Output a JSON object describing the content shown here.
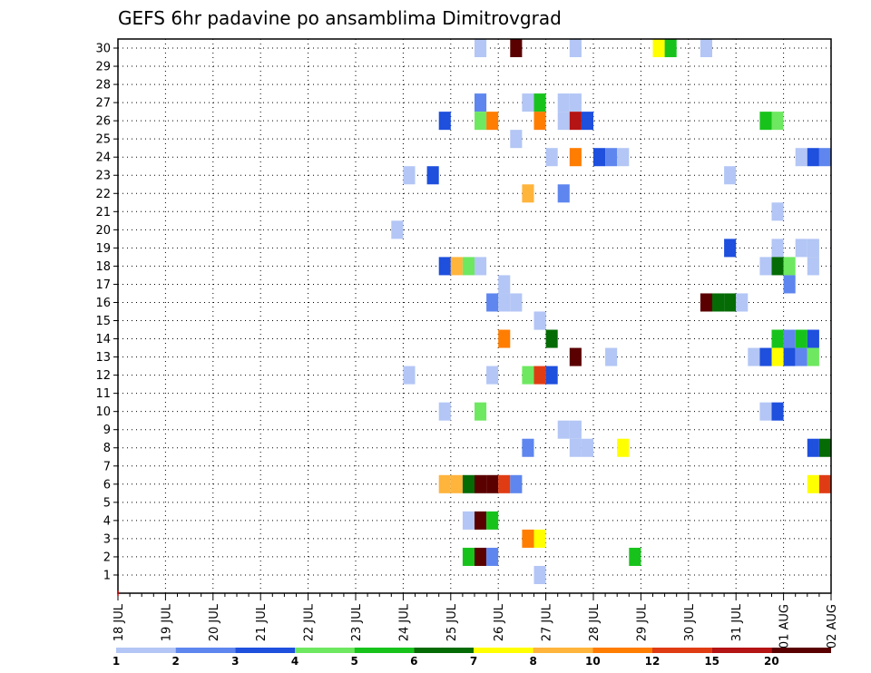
{
  "chart_data": {
    "type": "heatmap",
    "title": "GEFS 6hr padavine po ansamblima Dimitrovgrad",
    "xlabel": "",
    "ylabel": "",
    "x_tick_labels": [
      "18 JUL",
      "19 JUL",
      "20 JUL",
      "21 JUL",
      "22 JUL",
      "23 JUL",
      "24 JUL",
      "25 JUL",
      "26 JUL",
      "27 JUL",
      "28 JUL",
      "29 JUL",
      "30 JUL",
      "31 JUL",
      "01 AUG",
      "02 AUG"
    ],
    "y_tick_labels": [
      "1",
      "2",
      "3",
      "4",
      "5",
      "6",
      "7",
      "8",
      "9",
      "10",
      "11",
      "12",
      "13",
      "14",
      "15",
      "16",
      "17",
      "18",
      "19",
      "20",
      "21",
      "22",
      "23",
      "24",
      "25",
      "26",
      "27",
      "28",
      "29",
      "30"
    ],
    "xlim": [
      0,
      60
    ],
    "ylim": [
      0,
      30.5
    ],
    "x_unit": "6-hour steps since 18 JUL 00Z",
    "grid": true,
    "legend": {
      "placement": "bottom",
      "labels": [
        "1",
        "2",
        "3",
        "4",
        "5",
        "6",
        "7",
        "8",
        "10",
        "12",
        "15",
        "20"
      ],
      "colors": [
        "#b3c6f5",
        "#5e86ee",
        "#1e4fdd",
        "#6ee860",
        "#17c31b",
        "#056b05",
        "#ffff00",
        "#ffb43c",
        "#ff7d00",
        "#e03c14",
        "#b41414",
        "#5a0000"
      ]
    },
    "cells": [
      {
        "member": 30,
        "step": 31,
        "value": 1
      },
      {
        "member": 30,
        "step": 34,
        "value": 20
      },
      {
        "member": 30,
        "step": 39,
        "value": 1
      },
      {
        "member": 30,
        "step": 46,
        "value": 7
      },
      {
        "member": 30,
        "step": 47,
        "value": 5
      },
      {
        "member": 30,
        "step": 50,
        "value": 1
      },
      {
        "member": 27,
        "step": 31,
        "value": 2
      },
      {
        "member": 27,
        "step": 35,
        "value": 1
      },
      {
        "member": 27,
        "step": 36,
        "value": 5
      },
      {
        "member": 27,
        "step": 38,
        "value": 1
      },
      {
        "member": 27,
        "step": 39,
        "value": 1
      },
      {
        "member": 26,
        "step": 28,
        "value": 3
      },
      {
        "member": 26,
        "step": 31,
        "value": 4
      },
      {
        "member": 26,
        "step": 32,
        "value": 10
      },
      {
        "member": 26,
        "step": 36,
        "value": 10
      },
      {
        "member": 26,
        "step": 38,
        "value": 1
      },
      {
        "member": 26,
        "step": 39,
        "value": 15
      },
      {
        "member": 26,
        "step": 40,
        "value": 3
      },
      {
        "member": 26,
        "step": 55,
        "value": 5
      },
      {
        "member": 26,
        "step": 56,
        "value": 4
      },
      {
        "member": 25,
        "step": 34,
        "value": 1
      },
      {
        "member": 24,
        "step": 37,
        "value": 1
      },
      {
        "member": 24,
        "step": 39,
        "value": 10
      },
      {
        "member": 24,
        "step": 41,
        "value": 3
      },
      {
        "member": 24,
        "step": 42,
        "value": 2
      },
      {
        "member": 24,
        "step": 43,
        "value": 1
      },
      {
        "member": 24,
        "step": 58,
        "value": 1
      },
      {
        "member": 24,
        "step": 59,
        "value": 3
      },
      {
        "member": 24,
        "step": 60,
        "value": 2
      },
      {
        "member": 23,
        "step": 25,
        "value": 1
      },
      {
        "member": 23,
        "step": 27,
        "value": 3
      },
      {
        "member": 23,
        "step": 52,
        "value": 1
      },
      {
        "member": 22,
        "step": 35,
        "value": 8
      },
      {
        "member": 22,
        "step": 38,
        "value": 2
      },
      {
        "member": 21,
        "step": 56,
        "value": 1
      },
      {
        "member": 20,
        "step": 24,
        "value": 1
      },
      {
        "member": 19,
        "step": 52,
        "value": 3
      },
      {
        "member": 19,
        "step": 56,
        "value": 1
      },
      {
        "member": 19,
        "step": 58,
        "value": 1
      },
      {
        "member": 19,
        "step": 59,
        "value": 1
      },
      {
        "member": 18,
        "step": 28,
        "value": 3
      },
      {
        "member": 18,
        "step": 29,
        "value": 8
      },
      {
        "member": 18,
        "step": 30,
        "value": 4
      },
      {
        "member": 18,
        "step": 31,
        "value": 1
      },
      {
        "member": 18,
        "step": 55,
        "value": 1
      },
      {
        "member": 18,
        "step": 56,
        "value": 6
      },
      {
        "member": 18,
        "step": 57,
        "value": 4
      },
      {
        "member": 18,
        "step": 59,
        "value": 1
      },
      {
        "member": 17,
        "step": 33,
        "value": 1
      },
      {
        "member": 17,
        "step": 57,
        "value": 2
      },
      {
        "member": 16,
        "step": 32,
        "value": 2
      },
      {
        "member": 16,
        "step": 33,
        "value": 1
      },
      {
        "member": 16,
        "step": 34,
        "value": 1
      },
      {
        "member": 16,
        "step": 50,
        "value": 20
      },
      {
        "member": 16,
        "step": 51,
        "value": 6
      },
      {
        "member": 16,
        "step": 52,
        "value": 6
      },
      {
        "member": 16,
        "step": 53,
        "value": 1
      },
      {
        "member": 15,
        "step": 36,
        "value": 3
      },
      {
        "member": 15,
        "step": 36,
        "value": 1
      },
      {
        "member": 14,
        "step": 33,
        "value": 10
      },
      {
        "member": 14,
        "step": 37,
        "value": 6
      },
      {
        "member": 14,
        "step": 56,
        "value": 5
      },
      {
        "member": 14,
        "step": 57,
        "value": 2
      },
      {
        "member": 14,
        "step": 58,
        "value": 5
      },
      {
        "member": 14,
        "step": 59,
        "value": 3
      },
      {
        "member": 13,
        "step": 39,
        "value": 20
      },
      {
        "member": 13,
        "step": 42,
        "value": 1
      },
      {
        "member": 13,
        "step": 54,
        "value": 1
      },
      {
        "member": 13,
        "step": 55,
        "value": 3
      },
      {
        "member": 13,
        "step": 56,
        "value": 7
      },
      {
        "member": 13,
        "step": 57,
        "value": 3
      },
      {
        "member": 13,
        "step": 58,
        "value": 2
      },
      {
        "member": 13,
        "step": 59,
        "value": 4
      },
      {
        "member": 12,
        "step": 25,
        "value": 1
      },
      {
        "member": 12,
        "step": 32,
        "value": 1
      },
      {
        "member": 12,
        "step": 35,
        "value": 4
      },
      {
        "member": 12,
        "step": 36,
        "value": 12
      },
      {
        "member": 12,
        "step": 37,
        "value": 3
      },
      {
        "member": 10,
        "step": 28,
        "value": 1
      },
      {
        "member": 10,
        "step": 31,
        "value": 4
      },
      {
        "member": 10,
        "step": 55,
        "value": 1
      },
      {
        "member": 10,
        "step": 56,
        "value": 3
      },
      {
        "member": 9,
        "step": 38,
        "value": 1
      },
      {
        "member": 9,
        "step": 39,
        "value": 1
      },
      {
        "member": 8,
        "step": 35,
        "value": 2
      },
      {
        "member": 8,
        "step": 39,
        "value": 1
      },
      {
        "member": 8,
        "step": 40,
        "value": 1
      },
      {
        "member": 8,
        "step": 43,
        "value": 7
      },
      {
        "member": 8,
        "step": 59,
        "value": 3
      },
      {
        "member": 8,
        "step": 60,
        "value": 6
      },
      {
        "member": 6,
        "step": 28,
        "value": 8
      },
      {
        "member": 6,
        "step": 29,
        "value": 8
      },
      {
        "member": 6,
        "step": 30,
        "value": 6
      },
      {
        "member": 6,
        "step": 31,
        "value": 20
      },
      {
        "member": 6,
        "step": 32,
        "value": 20
      },
      {
        "member": 6,
        "step": 33,
        "value": 12
      },
      {
        "member": 6,
        "step": 34,
        "value": 2
      },
      {
        "member": 6,
        "step": 59,
        "value": 7
      },
      {
        "member": 6,
        "step": 60,
        "value": 12
      },
      {
        "member": 4,
        "step": 30,
        "value": 1
      },
      {
        "member": 4,
        "step": 31,
        "value": 20
      },
      {
        "member": 4,
        "step": 32,
        "value": 5
      },
      {
        "member": 3,
        "step": 35,
        "value": 10
      },
      {
        "member": 3,
        "step": 36,
        "value": 7
      },
      {
        "member": 2,
        "step": 30,
        "value": 5
      },
      {
        "member": 2,
        "step": 31,
        "value": 20
      },
      {
        "member": 2,
        "step": 32,
        "value": 2
      },
      {
        "member": 2,
        "step": 44,
        "value": 5
      },
      {
        "member": 1,
        "step": 36,
        "value": 1
      }
    ]
  }
}
